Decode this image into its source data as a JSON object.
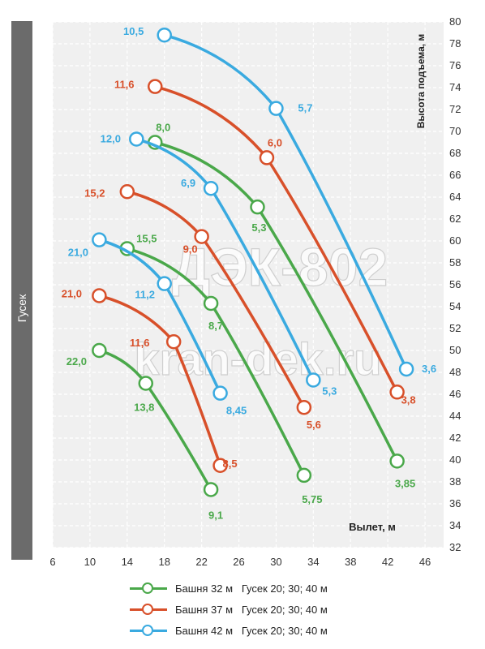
{
  "side_label": "Гусек",
  "chart_data": {
    "type": "line",
    "xlabel": "Вылет, м",
    "ylabel": "Высота подъема, м",
    "xlim": [
      6,
      48
    ],
    "ylim": [
      32,
      80
    ],
    "xticks": [
      6,
      10,
      14,
      18,
      22,
      26,
      30,
      34,
      38,
      42,
      46
    ],
    "yticks": [
      32,
      34,
      36,
      38,
      40,
      42,
      44,
      46,
      48,
      50,
      52,
      54,
      56,
      58,
      60,
      62,
      64,
      66,
      68,
      70,
      72,
      74,
      76,
      78,
      80
    ],
    "grid": true,
    "watermark": [
      "ДЭК-802",
      "kran-dek.ru"
    ],
    "legend": [
      {
        "tower": "Башня 32 м",
        "jib": "Гусек 20; 30; 40 м",
        "color": "#4aa84a"
      },
      {
        "tower": "Башня 37 м",
        "jib": "Гусек 20; 30; 40 м",
        "color": "#d8502a"
      },
      {
        "tower": "Башня 42 м",
        "jib": "Гусек 20; 30; 40 м",
        "color": "#3aaae0"
      }
    ],
    "series": [
      {
        "color": "#4aa84a",
        "points": [
          {
            "x": 11,
            "y": 50,
            "label": "22,0"
          },
          {
            "x": 16,
            "y": 47,
            "label": "13,8"
          },
          {
            "x": 23,
            "y": 37.3,
            "label": "9,1"
          }
        ]
      },
      {
        "color": "#4aa84a",
        "points": [
          {
            "x": 14,
            "y": 59.3,
            "label": "15,5"
          },
          {
            "x": 23,
            "y": 54.3,
            "label": "8,7"
          },
          {
            "x": 33,
            "y": 38.6,
            "label": "5,75"
          }
        ]
      },
      {
        "color": "#4aa84a",
        "points": [
          {
            "x": 17,
            "y": 69,
            "label": "8,0"
          },
          {
            "x": 28,
            "y": 63.1,
            "label": "5,3"
          },
          {
            "x": 43,
            "y": 39.9,
            "label": "3,85"
          }
        ]
      },
      {
        "color": "#d8502a",
        "points": [
          {
            "x": 11,
            "y": 55,
            "label": "21,0"
          },
          {
            "x": 19,
            "y": 50.8,
            "label": "11,6"
          },
          {
            "x": 24,
            "y": 39.5,
            "label": "8,5"
          }
        ]
      },
      {
        "color": "#d8502a",
        "points": [
          {
            "x": 14,
            "y": 64.5,
            "label": "15,2"
          },
          {
            "x": 22,
            "y": 60.4,
            "label": "9,0"
          },
          {
            "x": 33,
            "y": 44.8,
            "label": "5,6"
          }
        ]
      },
      {
        "color": "#d8502a",
        "points": [
          {
            "x": 17,
            "y": 74.1,
            "label": "11,6"
          },
          {
            "x": 29,
            "y": 67.6,
            "label": "6,0"
          },
          {
            "x": 43,
            "y": 46.2,
            "label": "3,8"
          }
        ]
      },
      {
        "color": "#3aaae0",
        "points": [
          {
            "x": 11,
            "y": 60.1,
            "label": "21,0"
          },
          {
            "x": 18,
            "y": 56.1,
            "label": "11,2"
          },
          {
            "x": 24,
            "y": 46.1,
            "label": "8,45"
          }
        ]
      },
      {
        "color": "#3aaae0",
        "points": [
          {
            "x": 15,
            "y": 69.3,
            "label": "12,0"
          },
          {
            "x": 23,
            "y": 64.8,
            "label": "6,9"
          },
          {
            "x": 34,
            "y": 47.3,
            "label": "5,3"
          }
        ]
      },
      {
        "color": "#3aaae0",
        "points": [
          {
            "x": 18,
            "y": 78.8,
            "label": "10,5"
          },
          {
            "x": 30,
            "y": 72.1,
            "label": "5,7"
          },
          {
            "x": 44,
            "y": 48.3,
            "label": "3,6"
          }
        ]
      }
    ]
  }
}
